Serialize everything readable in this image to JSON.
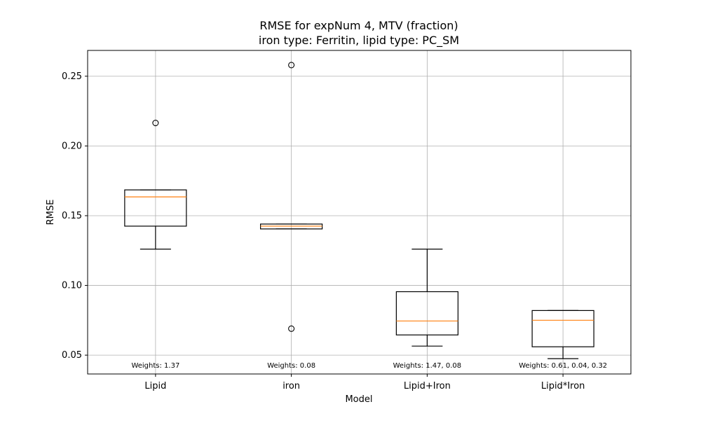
{
  "chart_data": {
    "type": "box",
    "title_line1": "RMSE for expNum 4, MTV (fraction)",
    "title_line2": "iron type: Ferritin, lipid type: PC_SM",
    "xlabel": "Model",
    "ylabel": "RMSE",
    "ylim": [
      0.0365,
      0.2685
    ],
    "yticks": [
      "0.05",
      "0.10",
      "0.15",
      "0.20",
      "0.25"
    ],
    "ytick_values": [
      0.05,
      0.1,
      0.15,
      0.2,
      0.25
    ],
    "grid": true,
    "categories": [
      "Lipid",
      "iron",
      "Lipid+Iron",
      "Lipid*Iron"
    ],
    "boxes": [
      {
        "category": "Lipid",
        "whisker_low": 0.126,
        "q1": 0.1425,
        "median": 0.1635,
        "q3": 0.1685,
        "whisker_high": 0.1685,
        "outliers": [
          0.2165
        ],
        "annotation": "Weights: 1.37"
      },
      {
        "category": "iron",
        "whisker_low": 0.1405,
        "q1": 0.1405,
        "median": 0.1425,
        "q3": 0.144,
        "whisker_high": 0.144,
        "outliers": [
          0.258,
          0.069
        ],
        "annotation": "Weights: 0.08"
      },
      {
        "category": "Lipid+Iron",
        "whisker_low": 0.0565,
        "q1": 0.0645,
        "median": 0.0745,
        "q3": 0.0955,
        "whisker_high": 0.126,
        "outliers": [],
        "annotation": "Weights: 1.47, 0.08"
      },
      {
        "category": "Lipid*Iron",
        "whisker_low": 0.0475,
        "q1": 0.056,
        "median": 0.075,
        "q3": 0.082,
        "whisker_high": 0.082,
        "outliers": [],
        "annotation": "Weights: 0.61, 0.04, 0.32"
      }
    ],
    "colors": {
      "box": "#000000",
      "median": "#ff7f0e",
      "grid": "#b0b0b0"
    }
  }
}
